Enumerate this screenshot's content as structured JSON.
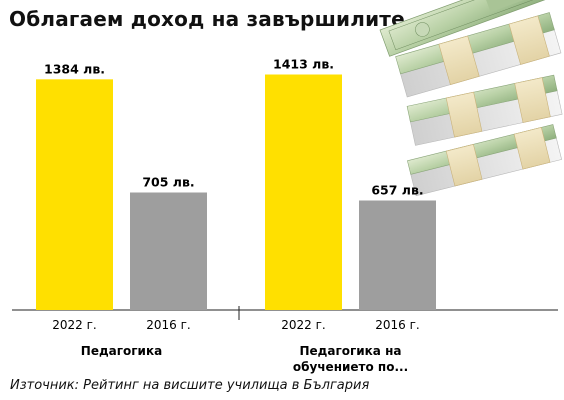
{
  "title": "Облагаем доход на завършилите",
  "source": "Източник: Рейтинг на висшите училища в България",
  "chart_data": {
    "type": "bar",
    "title": "Облагаем доход на завършилите",
    "ylim": [
      0,
      1500
    ],
    "grid": false,
    "groups": [
      {
        "label_lines": [
          "Педагогика"
        ],
        "bars": [
          {
            "category": "2022 г.",
            "value": 1384,
            "label": "1384 лв.",
            "color": "#FFE000"
          },
          {
            "category": "2016 г.",
            "value": 705,
            "label": "705 лв.",
            "color": "#9E9E9E"
          }
        ]
      },
      {
        "label_lines": [
          "Педагогика на",
          "обучението по..."
        ],
        "bars": [
          {
            "category": "2022 г.",
            "value": 1413,
            "label": "1413 лв.",
            "color": "#FFE000"
          },
          {
            "category": "2016 г.",
            "value": 657,
            "label": "657 лв.",
            "color": "#9E9E9E"
          }
        ]
      }
    ]
  },
  "image": {
    "description_icon": "banknote-stacks-image"
  }
}
